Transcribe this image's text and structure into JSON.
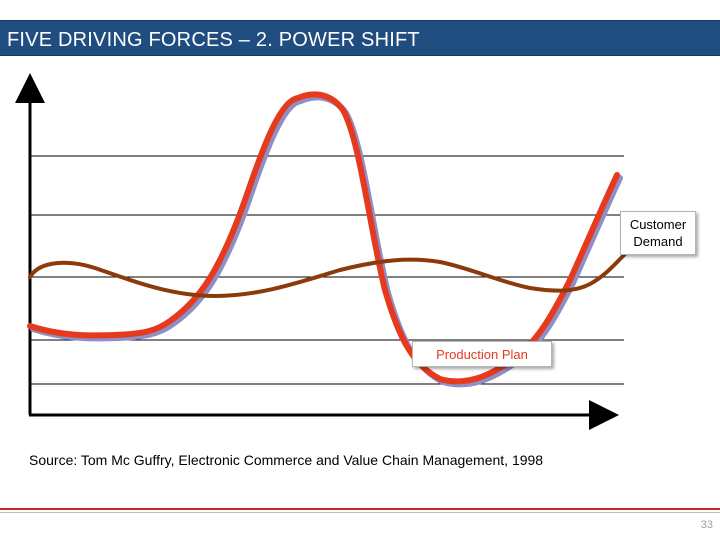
{
  "header": {
    "title": "FIVE DRIVING FORCES – 2. POWER SHIFT"
  },
  "diagram": {
    "curves": [
      {
        "name": "Customer Demand",
        "color": "#e63a1e"
      },
      {
        "name": "Production Plan",
        "color": "#8b3a0a"
      }
    ],
    "labels": {
      "demand": "Customer Demand",
      "plan": "Production Plan"
    }
  },
  "source": "Source: Tom Mc Guffry, Electronic Commerce and Value Chain Management, 1998",
  "footer": {
    "page_number": "33"
  }
}
